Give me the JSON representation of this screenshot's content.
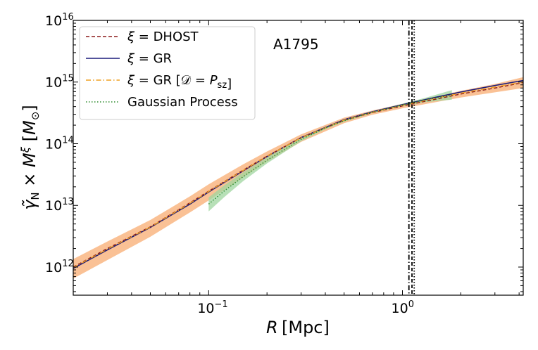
{
  "chart_data": {
    "type": "line",
    "title": "",
    "annotation": "A1795",
    "xlabel": "R [Mpc]",
    "ylabel": "γ̃_N × M^ξ [M_⊙]",
    "x_scale": "log",
    "y_scale": "log",
    "xlim": [
      0.02,
      4.2
    ],
    "ylim": [
      350000000000.0,
      1e+16
    ],
    "grid": false,
    "legend_placement": "top-left",
    "x_ticks": [
      {
        "value": 0.1,
        "base": "10",
        "exp": "−1"
      },
      {
        "value": 1,
        "base": "10",
        "exp": "0"
      }
    ],
    "y_ticks": [
      {
        "value": 1000000000000.0,
        "base": "10",
        "exp": "12"
      },
      {
        "value": 10000000000000.0,
        "base": "10",
        "exp": "13"
      },
      {
        "value": 100000000000000.0,
        "base": "10",
        "exp": "14"
      },
      {
        "value": 1000000000000000.0,
        "base": "10",
        "exp": "15"
      },
      {
        "value": 1e+16,
        "base": "10",
        "exp": "16"
      }
    ],
    "series": [
      {
        "name": "ξ = DHOST",
        "style": "dashed",
        "color": "#8b1a1a",
        "x": [
          0.02,
          0.03,
          0.05,
          0.08,
          0.1,
          0.15,
          0.2,
          0.3,
          0.5,
          0.7,
          1.0,
          1.5,
          2.0,
          3.0,
          4.2
        ],
        "y": [
          1000000000000.0,
          2000000000000.0,
          4500000000000.0,
          11000000000000.0,
          17000000000000.0,
          37000000000000.0,
          63000000000000.0,
          125000000000000.0,
          240000000000000.0,
          320000000000000.0,
          410000000000000.0,
          530000000000000.0,
          640000000000000.0,
          800000000000000.0,
          980000000000000.0
        ],
        "band_lower": [
          650000000000.0,
          1300000000000.0,
          3100000000000.0,
          7700000000000.0,
          12000000000000.0,
          28000000000000.0,
          51000000000000.0,
          107000000000000.0,
          215000000000000.0,
          295000000000000.0,
          375000000000000.0,
          475000000000000.0,
          560000000000000.0,
          680000000000000.0,
          800000000000000.0
        ],
        "band_upper": [
          1350000000000.0,
          2600000000000.0,
          5800000000000.0,
          14000000000000.0,
          22000000000000.0,
          46000000000000.0,
          75000000000000.0,
          142000000000000.0,
          265000000000000.0,
          345000000000000.0,
          445000000000000.0,
          590000000000000.0,
          720000000000000.0,
          930000000000000.0,
          1200000000000000.0
        ]
      },
      {
        "name": "ξ = GR",
        "style": "solid",
        "color": "#1a1a7a",
        "x": [
          0.02,
          0.03,
          0.05,
          0.08,
          0.1,
          0.15,
          0.2,
          0.3,
          0.5,
          0.7,
          1.0,
          1.5,
          2.0,
          3.0,
          4.2
        ],
        "y": [
          950000000000.0,
          1900000000000.0,
          4400000000000.0,
          10500000000000.0,
          16500000000000.0,
          36000000000000.0,
          62000000000000.0,
          126000000000000.0,
          245000000000000.0,
          330000000000000.0,
          430000000000000.0,
          570000000000000.0,
          690000000000000.0,
          880000000000000.0,
          1060000000000000.0
        ]
      },
      {
        "name": "ξ = GR [𝒟 = P_sz]",
        "style": "dashdot",
        "color": "#f0a020",
        "x": [
          0.02,
          0.03,
          0.05,
          0.08,
          0.1,
          0.15,
          0.2,
          0.3,
          0.5,
          0.7,
          1.0,
          1.5,
          2.0,
          3.0,
          4.2
        ],
        "y": [
          980000000000.0,
          1950000000000.0,
          4450000000000.0,
          10800000000000.0,
          16800000000000.0,
          36500000000000.0,
          62500000000000.0,
          125000000000000.0,
          242000000000000.0,
          325000000000000.0,
          420000000000000.0,
          550000000000000.0,
          660000000000000.0,
          830000000000000.0,
          1000000000000000.0
        ]
      },
      {
        "name": "Gaussian Process",
        "style": "dotted",
        "color": "#2e8b2e",
        "x": [
          0.1,
          0.12,
          0.15,
          0.2,
          0.3,
          0.4,
          0.5,
          0.7,
          1.0,
          1.3,
          1.8
        ],
        "y": [
          10500000000000.0,
          17000000000000.0,
          29000000000000.0,
          54000000000000.0,
          118000000000000.0,
          180000000000000.0,
          235000000000000.0,
          325000000000000.0,
          425000000000000.0,
          510000000000000.0,
          620000000000000.0
        ],
        "band_lower": [
          8000000000000.0,
          13500000000000.0,
          24500000000000.0,
          48000000000000.0,
          110000000000000.0,
          172000000000000.0,
          228000000000000.0,
          315000000000000.0,
          405000000000000.0,
          470000000000000.0,
          520000000000000.0
        ],
        "band_upper": [
          13500000000000.0,
          21000000000000.0,
          34000000000000.0,
          60000000000000.0,
          125000000000000.0,
          188000000000000.0,
          242000000000000.0,
          335000000000000.0,
          445000000000000.0,
          550000000000000.0,
          740000000000000.0
        ]
      }
    ],
    "vertical_lines": [
      {
        "x": 1.08,
        "style": "dashdot",
        "color": "#000000"
      },
      {
        "x": 1.12,
        "style": "dashed",
        "color": "#000000"
      },
      {
        "x": 1.15,
        "style": "dotted",
        "color": "#000000"
      }
    ],
    "band_colors": {
      "DHOST": "#f9b27a",
      "Gaussian Process": "#9fd69f"
    }
  }
}
